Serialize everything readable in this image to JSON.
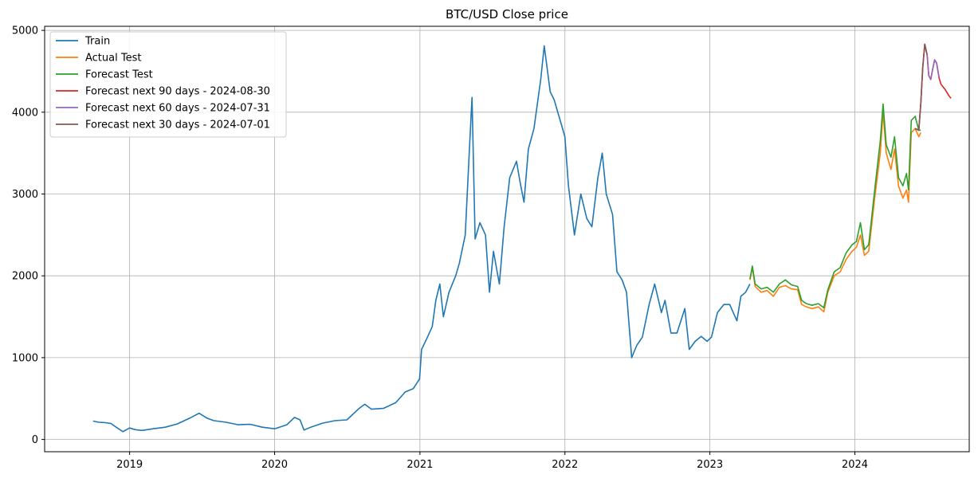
{
  "chart_data": {
    "type": "line",
    "title": "BTC/USD Close price",
    "xlabel": "",
    "ylabel": "",
    "x_range": [
      "2018-06-01",
      "2024-10-15"
    ],
    "ylim": [
      -150,
      5050
    ],
    "grid": true,
    "legend_position": "top-left",
    "x_ticks": [
      "2019",
      "2020",
      "2021",
      "2022",
      "2023",
      "2024"
    ],
    "x_tick_dates": [
      "2019-01-01",
      "2020-01-01",
      "2021-01-01",
      "2022-01-01",
      "2023-01-01",
      "2024-01-01"
    ],
    "y_ticks": [
      0,
      1000,
      2000,
      3000,
      4000,
      5000
    ],
    "series": [
      {
        "name": "Train",
        "color": "#1f77b4",
        "points": [
          [
            "2018-10-01",
            225
          ],
          [
            "2018-10-15",
            210
          ],
          [
            "2018-11-01",
            205
          ],
          [
            "2018-11-15",
            195
          ],
          [
            "2018-12-01",
            140
          ],
          [
            "2018-12-15",
            95
          ],
          [
            "2019-01-01",
            140
          ],
          [
            "2019-01-15",
            120
          ],
          [
            "2019-02-01",
            110
          ],
          [
            "2019-03-01",
            130
          ],
          [
            "2019-04-01",
            150
          ],
          [
            "2019-05-01",
            190
          ],
          [
            "2019-06-01",
            260
          ],
          [
            "2019-06-25",
            320
          ],
          [
            "2019-07-15",
            260
          ],
          [
            "2019-08-01",
            230
          ],
          [
            "2019-09-01",
            210
          ],
          [
            "2019-10-01",
            180
          ],
          [
            "2019-11-01",
            185
          ],
          [
            "2019-12-01",
            150
          ],
          [
            "2020-01-01",
            130
          ],
          [
            "2020-02-01",
            180
          ],
          [
            "2020-02-20",
            270
          ],
          [
            "2020-03-05",
            240
          ],
          [
            "2020-03-15",
            115
          ],
          [
            "2020-04-01",
            150
          ],
          [
            "2020-05-01",
            200
          ],
          [
            "2020-06-01",
            230
          ],
          [
            "2020-07-01",
            240
          ],
          [
            "2020-08-01",
            380
          ],
          [
            "2020-08-15",
            430
          ],
          [
            "2020-09-01",
            370
          ],
          [
            "2020-10-01",
            380
          ],
          [
            "2020-11-01",
            450
          ],
          [
            "2020-11-25",
            580
          ],
          [
            "2020-12-15",
            620
          ],
          [
            "2020-12-31",
            740
          ],
          [
            "2021-01-05",
            1100
          ],
          [
            "2021-01-20",
            1250
          ],
          [
            "2021-02-01",
            1380
          ],
          [
            "2021-02-10",
            1700
          ],
          [
            "2021-02-20",
            1900
          ],
          [
            "2021-03-01",
            1500
          ],
          [
            "2021-03-15",
            1800
          ],
          [
            "2021-04-01",
            2000
          ],
          [
            "2021-04-10",
            2150
          ],
          [
            "2021-04-25",
            2500
          ],
          [
            "2021-05-05",
            3500
          ],
          [
            "2021-05-12",
            4180
          ],
          [
            "2021-05-20",
            2450
          ],
          [
            "2021-06-01",
            2650
          ],
          [
            "2021-06-15",
            2500
          ],
          [
            "2021-06-25",
            1800
          ],
          [
            "2021-07-05",
            2300
          ],
          [
            "2021-07-20",
            1900
          ],
          [
            "2021-08-01",
            2600
          ],
          [
            "2021-08-15",
            3200
          ],
          [
            "2021-09-01",
            3400
          ],
          [
            "2021-09-10",
            3150
          ],
          [
            "2021-09-20",
            2900
          ],
          [
            "2021-10-01",
            3550
          ],
          [
            "2021-10-15",
            3800
          ],
          [
            "2021-11-01",
            4400
          ],
          [
            "2021-11-10",
            4810
          ],
          [
            "2021-11-25",
            4250
          ],
          [
            "2021-12-05",
            4150
          ],
          [
            "2021-12-20",
            3900
          ],
          [
            "2022-01-01",
            3700
          ],
          [
            "2022-01-10",
            3100
          ],
          [
            "2022-01-25",
            2500
          ],
          [
            "2022-02-10",
            3000
          ],
          [
            "2022-02-25",
            2700
          ],
          [
            "2022-03-10",
            2600
          ],
          [
            "2022-03-25",
            3200
          ],
          [
            "2022-04-05",
            3500
          ],
          [
            "2022-04-15",
            3000
          ],
          [
            "2022-05-01",
            2750
          ],
          [
            "2022-05-12",
            2050
          ],
          [
            "2022-05-25",
            1950
          ],
          [
            "2022-06-05",
            1800
          ],
          [
            "2022-06-18",
            1000
          ],
          [
            "2022-07-01",
            1150
          ],
          [
            "2022-07-15",
            1250
          ],
          [
            "2022-08-01",
            1650
          ],
          [
            "2022-08-15",
            1900
          ],
          [
            "2022-09-01",
            1550
          ],
          [
            "2022-09-10",
            1700
          ],
          [
            "2022-09-25",
            1300
          ],
          [
            "2022-10-10",
            1300
          ],
          [
            "2022-10-30",
            1600
          ],
          [
            "2022-11-10",
            1100
          ],
          [
            "2022-11-25",
            1200
          ],
          [
            "2022-12-10",
            1260
          ],
          [
            "2022-12-25",
            1200
          ],
          [
            "2023-01-05",
            1250
          ],
          [
            "2023-01-20",
            1550
          ],
          [
            "2023-02-05",
            1650
          ],
          [
            "2023-02-20",
            1650
          ],
          [
            "2023-03-10",
            1450
          ],
          [
            "2023-03-20",
            1750
          ],
          [
            "2023-04-01",
            1800
          ],
          [
            "2023-04-12",
            1900
          ]
        ]
      },
      {
        "name": "Actual Test",
        "color": "#ff7f0e",
        "points": [
          [
            "2023-04-12",
            1950
          ],
          [
            "2023-04-18",
            2100
          ],
          [
            "2023-04-25",
            1870
          ],
          [
            "2023-05-10",
            1800
          ],
          [
            "2023-05-25",
            1820
          ],
          [
            "2023-06-10",
            1750
          ],
          [
            "2023-06-25",
            1860
          ],
          [
            "2023-07-10",
            1880
          ],
          [
            "2023-07-25",
            1840
          ],
          [
            "2023-08-10",
            1830
          ],
          [
            "2023-08-20",
            1650
          ],
          [
            "2023-09-01",
            1620
          ],
          [
            "2023-09-15",
            1600
          ],
          [
            "2023-10-01",
            1620
          ],
          [
            "2023-10-15",
            1560
          ],
          [
            "2023-10-25",
            1800
          ],
          [
            "2023-11-10",
            2000
          ],
          [
            "2023-11-25",
            2050
          ],
          [
            "2023-12-10",
            2200
          ],
          [
            "2023-12-25",
            2300
          ],
          [
            "2024-01-05",
            2350
          ],
          [
            "2024-01-15",
            2500
          ],
          [
            "2024-01-25",
            2250
          ],
          [
            "2024-02-05",
            2300
          ],
          [
            "2024-02-20",
            2950
          ],
          [
            "2024-03-05",
            3500
          ],
          [
            "2024-03-12",
            4000
          ],
          [
            "2024-03-20",
            3500
          ],
          [
            "2024-04-01",
            3300
          ],
          [
            "2024-04-10",
            3550
          ],
          [
            "2024-04-20",
            3100
          ],
          [
            "2024-05-01",
            2950
          ],
          [
            "2024-05-10",
            3050
          ],
          [
            "2024-05-15",
            2900
          ],
          [
            "2024-05-22",
            3750
          ],
          [
            "2024-06-01",
            3800
          ],
          [
            "2024-06-10",
            3700
          ],
          [
            "2024-06-15",
            3750
          ]
        ]
      },
      {
        "name": "Forecast Test",
        "color": "#2ca02c",
        "points": [
          [
            "2023-04-12",
            1960
          ],
          [
            "2023-04-18",
            2120
          ],
          [
            "2023-04-25",
            1900
          ],
          [
            "2023-05-10",
            1840
          ],
          [
            "2023-05-25",
            1860
          ],
          [
            "2023-06-10",
            1800
          ],
          [
            "2023-06-25",
            1900
          ],
          [
            "2023-07-10",
            1950
          ],
          [
            "2023-07-25",
            1890
          ],
          [
            "2023-08-10",
            1870
          ],
          [
            "2023-08-20",
            1700
          ],
          [
            "2023-09-01",
            1660
          ],
          [
            "2023-09-15",
            1640
          ],
          [
            "2023-10-01",
            1660
          ],
          [
            "2023-10-15",
            1610
          ],
          [
            "2023-10-25",
            1830
          ],
          [
            "2023-11-10",
            2050
          ],
          [
            "2023-11-25",
            2100
          ],
          [
            "2023-12-10",
            2280
          ],
          [
            "2023-12-25",
            2380
          ],
          [
            "2024-01-05",
            2420
          ],
          [
            "2024-01-15",
            2650
          ],
          [
            "2024-01-25",
            2320
          ],
          [
            "2024-02-05",
            2380
          ],
          [
            "2024-02-20",
            3050
          ],
          [
            "2024-03-05",
            3650
          ],
          [
            "2024-03-12",
            4100
          ],
          [
            "2024-03-20",
            3600
          ],
          [
            "2024-04-01",
            3450
          ],
          [
            "2024-04-10",
            3700
          ],
          [
            "2024-04-20",
            3200
          ],
          [
            "2024-05-01",
            3100
          ],
          [
            "2024-05-10",
            3250
          ],
          [
            "2024-05-15",
            3050
          ],
          [
            "2024-05-22",
            3900
          ],
          [
            "2024-06-01",
            3950
          ],
          [
            "2024-06-10",
            3780
          ],
          [
            "2024-06-15",
            3780
          ]
        ]
      },
      {
        "name": "Forecast next 90 days - 2024-08-30",
        "color": "#d62728",
        "points": [
          [
            "2024-06-01",
            3800
          ],
          [
            "2024-06-10",
            3780
          ],
          [
            "2024-06-15",
            4100
          ],
          [
            "2024-06-20",
            4550
          ],
          [
            "2024-06-25",
            4830
          ],
          [
            "2024-07-01",
            4700
          ],
          [
            "2024-07-05",
            4450
          ],
          [
            "2024-07-10",
            4400
          ],
          [
            "2024-07-15",
            4530
          ],
          [
            "2024-07-20",
            4640
          ],
          [
            "2024-07-25",
            4600
          ],
          [
            "2024-07-31",
            4420
          ],
          [
            "2024-08-05",
            4340
          ],
          [
            "2024-08-15",
            4280
          ],
          [
            "2024-08-25",
            4200
          ],
          [
            "2024-08-30",
            4170
          ]
        ]
      },
      {
        "name": "Forecast next 60 days - 2024-07-31",
        "color": "#9467bd",
        "points": [
          [
            "2024-06-01",
            3800
          ],
          [
            "2024-06-10",
            3780
          ],
          [
            "2024-06-15",
            4100
          ],
          [
            "2024-06-20",
            4550
          ],
          [
            "2024-06-25",
            4830
          ],
          [
            "2024-07-01",
            4700
          ],
          [
            "2024-07-05",
            4450
          ],
          [
            "2024-07-10",
            4400
          ],
          [
            "2024-07-15",
            4530
          ],
          [
            "2024-07-20",
            4640
          ],
          [
            "2024-07-25",
            4600
          ],
          [
            "2024-07-31",
            4430
          ]
        ]
      },
      {
        "name": "Forecast next 30 days - 2024-07-01",
        "color": "#8c564b",
        "points": [
          [
            "2024-06-01",
            3800
          ],
          [
            "2024-06-10",
            3780
          ],
          [
            "2024-06-15",
            4100
          ],
          [
            "2024-06-20",
            4550
          ],
          [
            "2024-06-25",
            4830
          ],
          [
            "2024-07-01",
            4700
          ]
        ]
      }
    ]
  }
}
